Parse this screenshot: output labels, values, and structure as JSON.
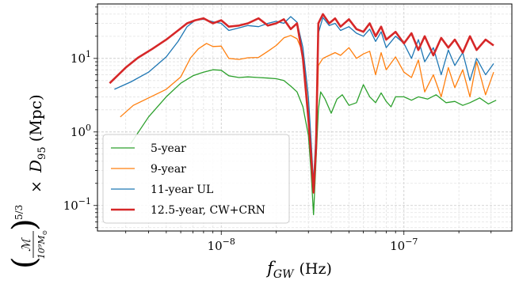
{
  "chart_data": {
    "type": "line",
    "xlabel": "f_GW (Hz)",
    "xlabel_main": "f",
    "xlabel_sub": "GW",
    "xlabel_unit": "(Hz)",
    "ylabel": "(M / 10^9 M_sun)^(5/3) × D_95 (Mpc)",
    "ylabel_parts": {
      "num": "ℳ",
      "den": "10⁹M",
      "den_sub": "⊙",
      "exp": "5/3",
      "times": "×",
      "D": "D",
      "D_sub": "95",
      "unit": "(Mpc)"
    },
    "x_scale": "log",
    "y_scale": "log",
    "xlim": [
      2.1e-09,
      3.9e-07
    ],
    "ylim": [
      0.045,
      55
    ],
    "x_ticks": [
      {
        "value": 1e-08,
        "mantissa": "10",
        "exp": "−8"
      },
      {
        "value": 1e-07,
        "mantissa": "10",
        "exp": "−7"
      }
    ],
    "y_ticks": [
      {
        "value": 0.1,
        "mantissa": "10",
        "exp": "−1"
      },
      {
        "value": 1,
        "mantissa": "10",
        "exp": "0"
      },
      {
        "value": 10,
        "mantissa": "10",
        "exp": "1"
      }
    ],
    "grid": true,
    "legend_position": "lower-left",
    "series": [
      {
        "name": "5-year",
        "color": "#2ca02c",
        "width": 1.3,
        "x": [
          3.2e-09,
          4e-09,
          5e-09,
          6e-09,
          7e-09,
          8e-09,
          9e-09,
          1e-08,
          1.1e-08,
          1.25e-08,
          1.4e-08,
          1.6e-08,
          1.8e-08,
          2e-08,
          2.2e-08,
          2.4e-08,
          2.6e-08,
          2.8e-08,
          3e-08,
          3.1e-08,
          3.2e-08,
          3.3e-08,
          3.4e-08,
          3.5e-08,
          3.7e-08,
          4e-08,
          4.3e-08,
          4.6e-08,
          5e-08,
          5.5e-08,
          6e-08,
          6.5e-08,
          7e-08,
          7.5e-08,
          8e-08,
          8.5e-08,
          9e-08,
          1e-07,
          1.1e-07,
          1.2e-07,
          1.35e-07,
          1.5e-07,
          1.7e-07,
          1.9e-07,
          2.1e-07,
          2.3e-07,
          2.6e-07,
          2.9e-07,
          3.2e-07
        ],
        "y": [
          0.7,
          1.6,
          3.0,
          4.6,
          5.8,
          6.5,
          7.0,
          6.9,
          5.8,
          5.5,
          5.6,
          5.5,
          5.4,
          5.3,
          5.0,
          4.2,
          3.5,
          2.2,
          0.9,
          0.3,
          0.075,
          0.4,
          2.0,
          3.5,
          2.8,
          1.8,
          2.8,
          3.2,
          2.3,
          2.5,
          4.4,
          3.0,
          2.5,
          3.4,
          2.6,
          2.2,
          3.0,
          3.0,
          2.7,
          3.0,
          2.8,
          3.2,
          2.5,
          2.6,
          2.3,
          2.5,
          2.9,
          2.4,
          2.7
        ]
      },
      {
        "name": "9-year",
        "color": "#ff7f0e",
        "width": 1.3,
        "x": [
          2.8e-09,
          3.3e-09,
          4e-09,
          5e-09,
          6e-09,
          6.8e-09,
          7.5e-09,
          8.3e-09,
          9e-09,
          1e-08,
          1.1e-08,
          1.25e-08,
          1.4e-08,
          1.6e-08,
          1.8e-08,
          2e-08,
          2.2e-08,
          2.4e-08,
          2.6e-08,
          2.8e-08,
          3e-08,
          3.1e-08,
          3.2e-08,
          3.3e-08,
          3.4e-08,
          3.6e-08,
          3.9e-08,
          4.2e-08,
          4.5e-08,
          5e-08,
          5.5e-08,
          6e-08,
          6.5e-08,
          7e-08,
          7.5e-08,
          8e-08,
          9e-08,
          1e-07,
          1.1e-07,
          1.2e-07,
          1.3e-07,
          1.45e-07,
          1.6e-07,
          1.75e-07,
          1.9e-07,
          2.1e-07,
          2.3e-07,
          2.5e-07,
          2.8e-07,
          3.1e-07
        ],
        "y": [
          1.6,
          2.3,
          2.9,
          3.8,
          5.6,
          10.2,
          13.5,
          16.0,
          14.5,
          14.7,
          10.0,
          9.7,
          10.2,
          10.3,
          12.5,
          15.0,
          19.0,
          20.5,
          18.5,
          12.0,
          2.0,
          0.6,
          0.17,
          0.5,
          8.0,
          10.0,
          11.0,
          12.0,
          11.0,
          14.0,
          10.0,
          11.5,
          12.5,
          6.0,
          12.0,
          7.0,
          10.5,
          6.5,
          5.5,
          9.5,
          3.5,
          6.0,
          3.0,
          7.5,
          4.0,
          7.0,
          3.0,
          9.0,
          3.2,
          6.5
        ]
      },
      {
        "name": "11-year UL",
        "color": "#1f77b4",
        "width": 1.3,
        "x": [
          2.6e-09,
          3.2e-09,
          4e-09,
          5e-09,
          5.8e-09,
          6.5e-09,
          7.2e-09,
          8e-09,
          9e-09,
          1e-08,
          1.1e-08,
          1.25e-08,
          1.4e-08,
          1.6e-08,
          1.8e-08,
          2e-08,
          2.2e-08,
          2.4e-08,
          2.6e-08,
          2.8e-08,
          3e-08,
          3.1e-08,
          3.2e-08,
          3.3e-08,
          3.4e-08,
          3.6e-08,
          3.9e-08,
          4.2e-08,
          4.5e-08,
          5e-08,
          5.5e-08,
          6e-08,
          6.5e-08,
          7e-08,
          7.5e-08,
          8e-08,
          9e-08,
          1e-07,
          1.1e-07,
          1.2e-07,
          1.3e-07,
          1.45e-07,
          1.6e-07,
          1.75e-07,
          1.9e-07,
          2.1e-07,
          2.3e-07,
          2.5e-07,
          2.8e-07,
          3.1e-07
        ],
        "y": [
          3.8,
          4.8,
          6.5,
          10.5,
          17.0,
          27.0,
          33.0,
          34.0,
          31.5,
          30.0,
          24.0,
          26.0,
          28.0,
          27.0,
          30.0,
          32.0,
          30.0,
          37.0,
          31.0,
          14.0,
          3.0,
          0.8,
          0.2,
          1.0,
          22.0,
          36.0,
          28.0,
          30.0,
          24.0,
          27.0,
          22.0,
          20.0,
          25.0,
          17.0,
          23.0,
          14.0,
          20.0,
          16.0,
          10.0,
          18.0,
          9.0,
          14.0,
          6.0,
          13.0,
          8.0,
          12.0,
          5.0,
          10.0,
          6.0,
          8.5
        ]
      },
      {
        "name": "12.5-year, CW+CRN",
        "color": "#d62728",
        "width": 2.6,
        "x": [
          2.45e-09,
          3e-09,
          3.5e-09,
          4.2e-09,
          5e-09,
          5.8e-09,
          6.5e-09,
          7.2e-09,
          8e-09,
          9e-09,
          1e-08,
          1.1e-08,
          1.25e-08,
          1.4e-08,
          1.6e-08,
          1.8e-08,
          2e-08,
          2.2e-08,
          2.4e-08,
          2.6e-08,
          2.8e-08,
          3e-08,
          3.1e-08,
          3.2e-08,
          3.3e-08,
          3.4e-08,
          3.6e-08,
          3.9e-08,
          4.2e-08,
          4.5e-08,
          5e-08,
          5.5e-08,
          6e-08,
          6.5e-08,
          7e-08,
          7.5e-08,
          8e-08,
          9e-08,
          1e-07,
          1.1e-07,
          1.2e-07,
          1.3e-07,
          1.45e-07,
          1.6e-07,
          1.75e-07,
          1.9e-07,
          2.1e-07,
          2.3e-07,
          2.5e-07,
          2.8e-07,
          3.1e-07
        ],
        "y": [
          4.6,
          7.5,
          10.2,
          13.5,
          18.0,
          24.0,
          30.0,
          33.0,
          35.0,
          30.0,
          33.0,
          27.0,
          28.0,
          30.0,
          35.0,
          28.0,
          30.0,
          34.0,
          25.0,
          30.0,
          10.0,
          1.5,
          0.5,
          0.15,
          0.6,
          30.0,
          40.0,
          30.0,
          35.0,
          27.0,
          34.0,
          25.0,
          23.0,
          30.0,
          20.0,
          27.0,
          18.0,
          23.0,
          16.0,
          22.0,
          13.0,
          20.0,
          11.0,
          19.0,
          14.0,
          18.0,
          12.0,
          20.0,
          13.0,
          18.0,
          15.0
        ]
      }
    ]
  }
}
